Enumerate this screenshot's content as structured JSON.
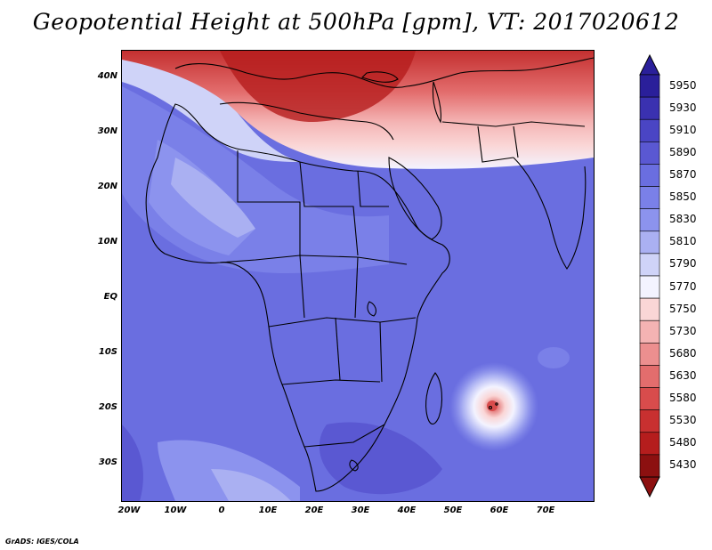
{
  "title": "Geopotential Height at 500hPa [gpm], VT: 2017020612",
  "credit": "GrADS: IGES/COLA",
  "lat_ticks": [
    "40N",
    "30N",
    "20N",
    "10N",
    "EQ",
    "10S",
    "20S",
    "30S"
  ],
  "lon_ticks": [
    "20W",
    "10W",
    "0",
    "10E",
    "20E",
    "30E",
    "40E",
    "50E",
    "60E",
    "70E"
  ],
  "colorbar": {
    "levels": [
      "5950",
      "5930",
      "5910",
      "5890",
      "5870",
      "5850",
      "5830",
      "5810",
      "5790",
      "5770",
      "5750",
      "5730",
      "5680",
      "5630",
      "5580",
      "5530",
      "5480",
      "5430"
    ],
    "colors": [
      "#2a1f9a",
      "#3a31b0",
      "#4a45c4",
      "#5a58d2",
      "#6a6ee0",
      "#7a80e8",
      "#8c93ee",
      "#aab0f2",
      "#cfd3f8",
      "#f3f3ff",
      "#fad6d6",
      "#f4b3b3",
      "#ec8f8f",
      "#e36d6d",
      "#d84c4c",
      "#c83030",
      "#b51d1d",
      "#8c1010"
    ]
  }
}
